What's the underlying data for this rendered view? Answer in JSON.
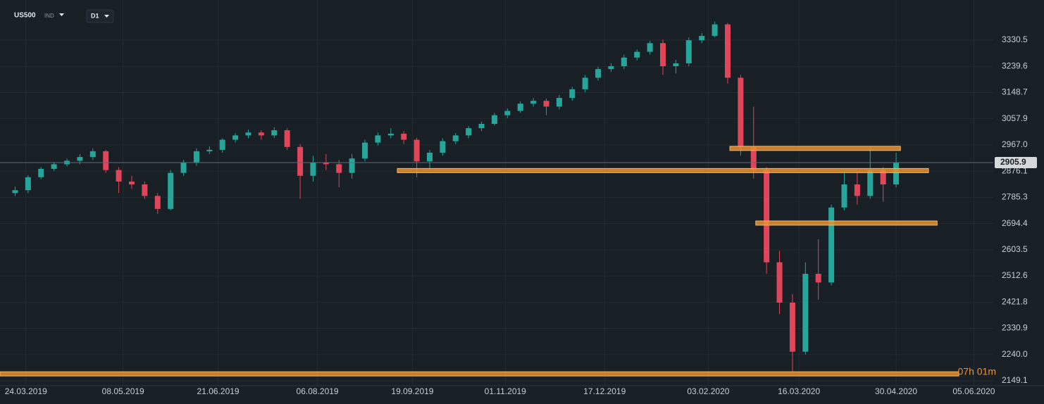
{
  "header": {
    "symbol": "US500",
    "market": "IND",
    "interval": "D1"
  },
  "chart_data": {
    "type": "candlestick",
    "x": [
      "19.03.2019",
      "25.03.2019",
      "31.03.2019",
      "06.04.2019",
      "12.04.2019",
      "18.04.2019",
      "24.04.2019",
      "30.04.2019",
      "06.05.2019",
      "12.05.2019",
      "18.05.2019",
      "24.05.2019",
      "30.05.2019",
      "05.06.2019",
      "11.06.2019",
      "17.06.2019",
      "23.06.2019",
      "29.06.2019",
      "05.07.2019",
      "11.07.2019",
      "17.07.2019",
      "23.07.2019",
      "29.07.2019",
      "04.08.2019",
      "10.08.2019",
      "16.08.2019",
      "22.08.2019",
      "28.08.2019",
      "03.09.2019",
      "09.09.2019",
      "15.09.2019",
      "21.09.2019",
      "27.09.2019",
      "03.10.2019",
      "09.10.2019",
      "15.10.2019",
      "21.10.2019",
      "27.10.2019",
      "02.11.2019",
      "08.11.2019",
      "14.11.2019",
      "20.11.2019",
      "26.11.2019",
      "02.12.2019",
      "08.12.2019",
      "14.12.2019",
      "20.12.2019",
      "26.12.2019",
      "01.01.2020",
      "07.01.2020",
      "13.01.2020",
      "19.01.2020",
      "25.01.2020",
      "31.01.2020",
      "06.02.2020",
      "12.02.2020",
      "18.02.2020",
      "24.02.2020",
      "01.03.2020",
      "07.03.2020",
      "13.03.2020",
      "19.03.2020",
      "25.03.2020",
      "31.03.2020",
      "06.04.2020",
      "12.04.2020",
      "18.04.2020",
      "24.04.2020",
      "30.04.2020"
    ],
    "open": [
      2800,
      2810,
      2855,
      2884,
      2900,
      2912,
      2925,
      2945,
      2880,
      2840,
      2830,
      2790,
      2745,
      2870,
      2905,
      2945,
      2950,
      2985,
      3000,
      3010,
      3000,
      3018,
      2960,
      2860,
      2905,
      2900,
      2870,
      2920,
      2975,
      3000,
      3006,
      2985,
      2910,
      2940,
      2980,
      3000,
      3025,
      3040,
      3070,
      3085,
      3110,
      3120,
      3100,
      3130,
      3160,
      3200,
      3230,
      3240,
      3270,
      3290,
      3320,
      3240,
      3250,
      3330,
      3345,
      3385,
      3200,
      2960,
      2880,
      2560,
      2420,
      2250,
      2520,
      2490,
      2750,
      2830,
      2790,
      2880,
      2830
    ],
    "high": [
      2822,
      2862,
      2890,
      2908,
      2920,
      2935,
      2955,
      2950,
      2890,
      2860,
      2840,
      2800,
      2880,
      2915,
      2955,
      2962,
      2990,
      3008,
      3020,
      3018,
      3028,
      3025,
      2970,
      2930,
      2935,
      2915,
      2935,
      2985,
      3010,
      3025,
      3015,
      2992,
      2950,
      2990,
      3008,
      3032,
      3048,
      3078,
      3094,
      3118,
      3130,
      3128,
      3140,
      3168,
      3210,
      3238,
      3250,
      3280,
      3298,
      3328,
      3332,
      3262,
      3340,
      3355,
      3395,
      3390,
      3210,
      3100,
      2890,
      2600,
      2450,
      2560,
      2640,
      2760,
      2870,
      2880,
      2960,
      2890,
      2940
    ],
    "low": [
      2790,
      2800,
      2848,
      2876,
      2892,
      2900,
      2915,
      2870,
      2800,
      2815,
      2780,
      2728,
      2740,
      2860,
      2895,
      2935,
      2940,
      2975,
      2990,
      2985,
      2992,
      2950,
      2780,
      2840,
      2880,
      2820,
      2850,
      2910,
      2965,
      2990,
      2970,
      2855,
      2880,
      2930,
      2970,
      2990,
      3015,
      3035,
      3060,
      3078,
      3100,
      3070,
      3090,
      3120,
      3150,
      3190,
      3220,
      3230,
      3260,
      3280,
      3210,
      3215,
      3240,
      3320,
      3340,
      3180,
      2930,
      2850,
      2520,
      2380,
      2180,
      2240,
      2430,
      2480,
      2740,
      2760,
      2780,
      2770,
      2820
    ],
    "close": [
      2810,
      2855,
      2884,
      2900,
      2912,
      2925,
      2945,
      2880,
      2840,
      2830,
      2790,
      2745,
      2870,
      2905,
      2945,
      2950,
      2985,
      3000,
      3010,
      3000,
      3018,
      2960,
      2860,
      2905,
      2900,
      2870,
      2920,
      2975,
      3000,
      3006,
      2985,
      2910,
      2940,
      2980,
      3000,
      3025,
      3040,
      3070,
      3085,
      3110,
      3120,
      3100,
      3130,
      3160,
      3200,
      3230,
      3240,
      3270,
      3290,
      3320,
      3240,
      3250,
      3330,
      3345,
      3385,
      3200,
      2960,
      2880,
      2560,
      2420,
      2250,
      2520,
      2490,
      2750,
      2830,
      2790,
      2880,
      2830,
      2905
    ],
    "up_color": "#26a69a",
    "down_color": "#e0455a",
    "xlim": [
      "12.03.2019",
      "14.06.2020"
    ],
    "xticks": [
      "24.03.2019",
      "08.05.2019",
      "21.06.2019",
      "06.08.2019",
      "19.09.2019",
      "01.11.2019",
      "17.12.2019",
      "03.02.2020",
      "16.03.2020",
      "30.04.2020",
      "05.06.2020"
    ],
    "ylim": [
      2132,
      3469.6
    ],
    "yticks": [
      3330.5,
      3239.6,
      3148.7,
      3057.9,
      {
        "value": 2967.0,
        "label": "2967.0"
      },
      2876.1,
      2785.3,
      2694.4,
      2603.5,
      2512.6,
      2421.8,
      2330.9,
      {
        "value": 2240.0,
        "label": "2240.0"
      },
      2149.1
    ],
    "grid": true,
    "last_price": 2905.9,
    "countdown": "07h 01m",
    "levels": [
      {
        "value": 2955,
        "start": "13.02.2020",
        "end": "02.05.2020"
      },
      {
        "value": 2878,
        "start": "12.09.2019",
        "end": "15.05.2020"
      },
      {
        "value": 2696,
        "start": "25.02.2020",
        "end": "19.05.2020"
      },
      {
        "value": 2173,
        "start": "12.03.2019",
        "end": "29.05.2020"
      }
    ],
    "level_color": "#e8902f"
  }
}
